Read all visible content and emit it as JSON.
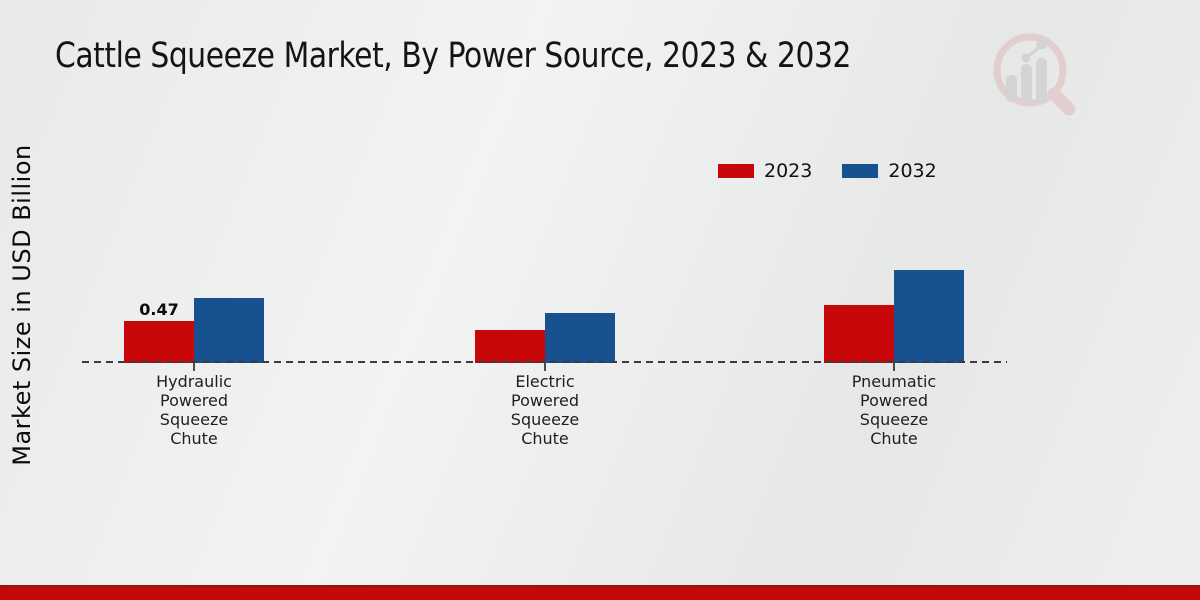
{
  "title": "Cattle Squeeze Market, By Power Source, 2023 & 2032",
  "y_axis_label": "Market Size in USD Billion",
  "legend": [
    {
      "label": "2023",
      "color": "#c7070a"
    },
    {
      "label": "2032",
      "color": "#17518f"
    }
  ],
  "chart_data": {
    "type": "bar",
    "title": "Cattle Squeeze Market, By Power Source, 2023 & 2032",
    "ylabel": "Market Size in USD Billion",
    "xlabel": "",
    "categories": [
      "Hydraulic Powered Squeeze Chute",
      "Electric Powered Squeeze Chute",
      "Pneumatic Powered Squeeze Chute"
    ],
    "series": [
      {
        "name": "2023",
        "color": "#c7070a",
        "values": [
          0.47,
          0.37,
          0.65
        ],
        "labels": [
          "0.47",
          "",
          ""
        ]
      },
      {
        "name": "2032",
        "color": "#17518f",
        "values": [
          0.73,
          0.56,
          1.04
        ],
        "labels": [
          "",
          "",
          ""
        ]
      }
    ],
    "ylim": [
      0,
      1.2
    ],
    "grid": false,
    "baseline_style": "dashed",
    "legend_position": "top-right"
  },
  "colors": {
    "background": "#eceded",
    "axis_dash": "#3b3b3b",
    "footer_bar": "#c50909",
    "footer_bar_edge": "#8f1717",
    "watermark_pink": "#debaba",
    "watermark_gray": "#c4c4c4"
  },
  "icons": {
    "watermark": "magnifier-bar-chart-logo"
  }
}
